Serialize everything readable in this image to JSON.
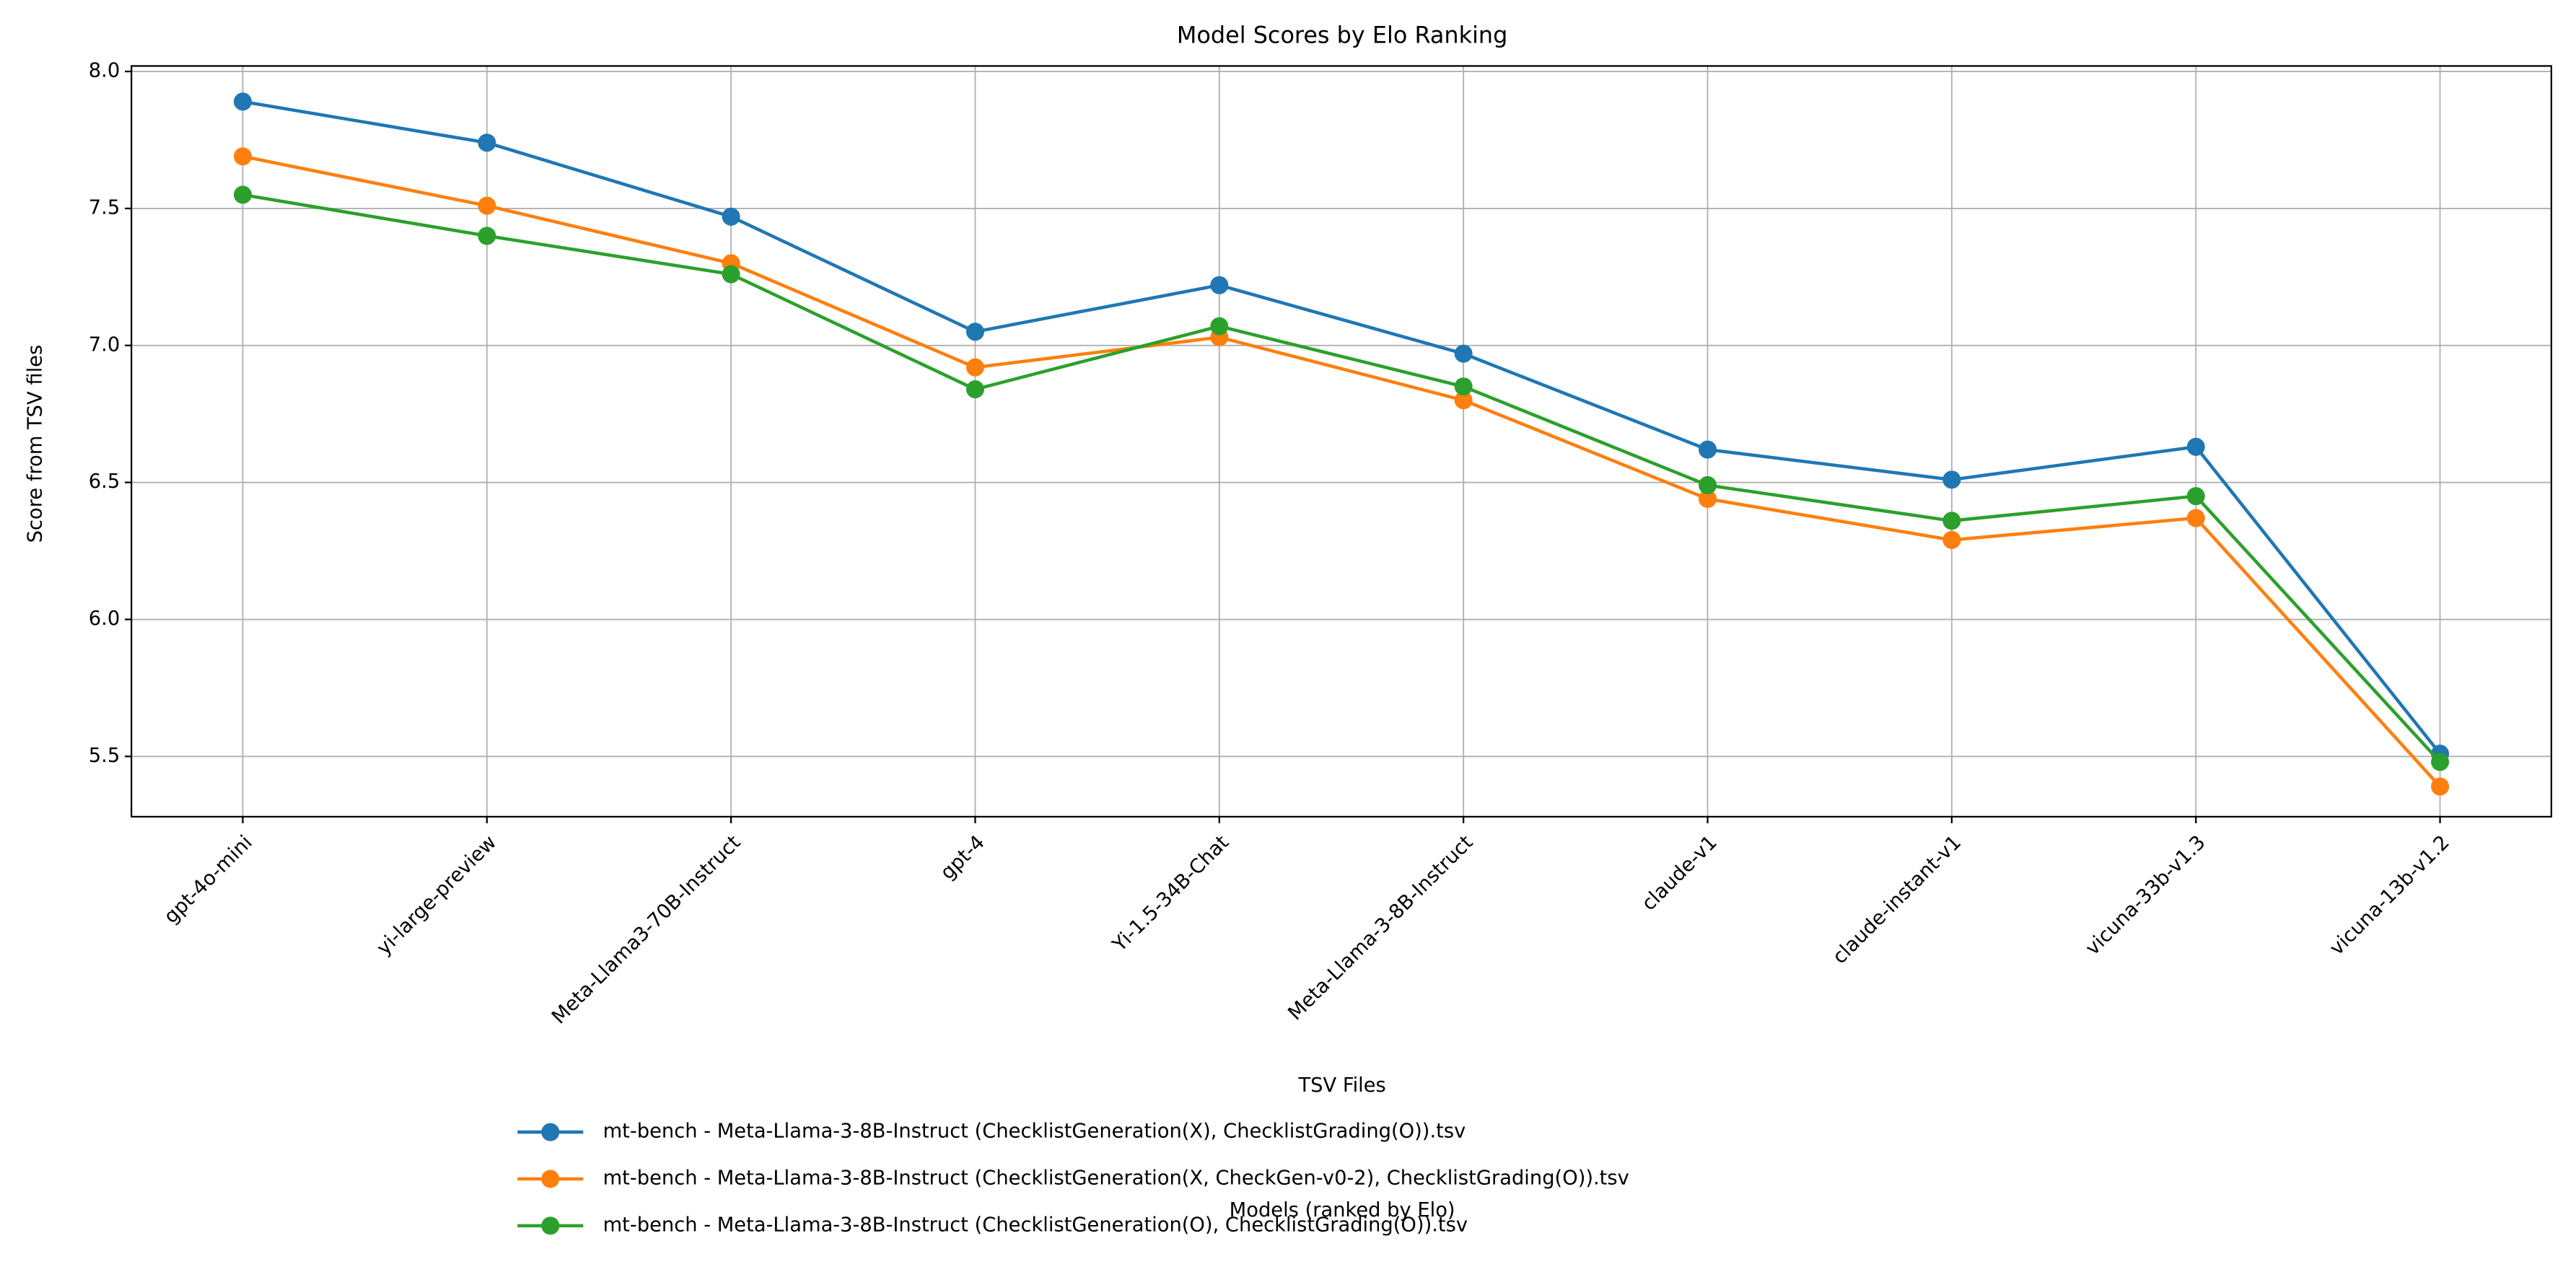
{
  "chart_data": {
    "type": "line",
    "title": "Model Scores by Elo Ranking",
    "x_label": "Models (ranked by Elo)",
    "y_label": "Score from TSV files",
    "categories": [
      "gpt-4o-mini",
      "yi-large-preview",
      "Meta-Llama3-70B-Instruct",
      "gpt-4",
      "Yi-1.5-34B-Chat",
      "Meta-Llama-3-8B-Instruct",
      "claude-v1",
      "claude-instant-v1",
      "vicuna-33b-v1.3",
      "vicuna-13b-v1.2"
    ],
    "series": [
      {
        "name": "mt-bench - Meta-Llama-3-8B-Instruct (ChecklistGeneration(X), ChecklistGrading(O)).tsv",
        "color": "#1f77b4",
        "values": [
          7.89,
          7.74,
          7.47,
          7.05,
          7.22,
          6.97,
          6.62,
          6.51,
          6.63,
          5.51
        ]
      },
      {
        "name": "mt-bench - Meta-Llama-3-8B-Instruct (ChecklistGeneration(X, CheckGen-v0-2), ChecklistGrading(O)).tsv",
        "color": "#ff7f0e",
        "values": [
          7.69,
          7.51,
          7.3,
          6.92,
          7.03,
          6.8,
          6.44,
          6.29,
          6.37,
          5.39
        ]
      },
      {
        "name": "mt-bench - Meta-Llama-3-8B-Instruct (ChecklistGeneration(O), ChecklistGrading(O)).tsv",
        "color": "#2ca02c",
        "values": [
          7.55,
          7.4,
          7.26,
          6.84,
          7.07,
          6.85,
          6.49,
          6.36,
          6.45,
          5.48
        ]
      }
    ],
    "ylim": [
      5.28,
      8.02
    ],
    "yticks": [
      5.5,
      {
        "value": 6,
        "label": "6.0"
      },
      6.5,
      {
        "value": 7,
        "label": "7.0"
      },
      7.5,
      {
        "value": 8,
        "label": "8.0"
      }
    ],
    "grid": true,
    "legend_title": "TSV Files",
    "legend_loc": "below"
  }
}
